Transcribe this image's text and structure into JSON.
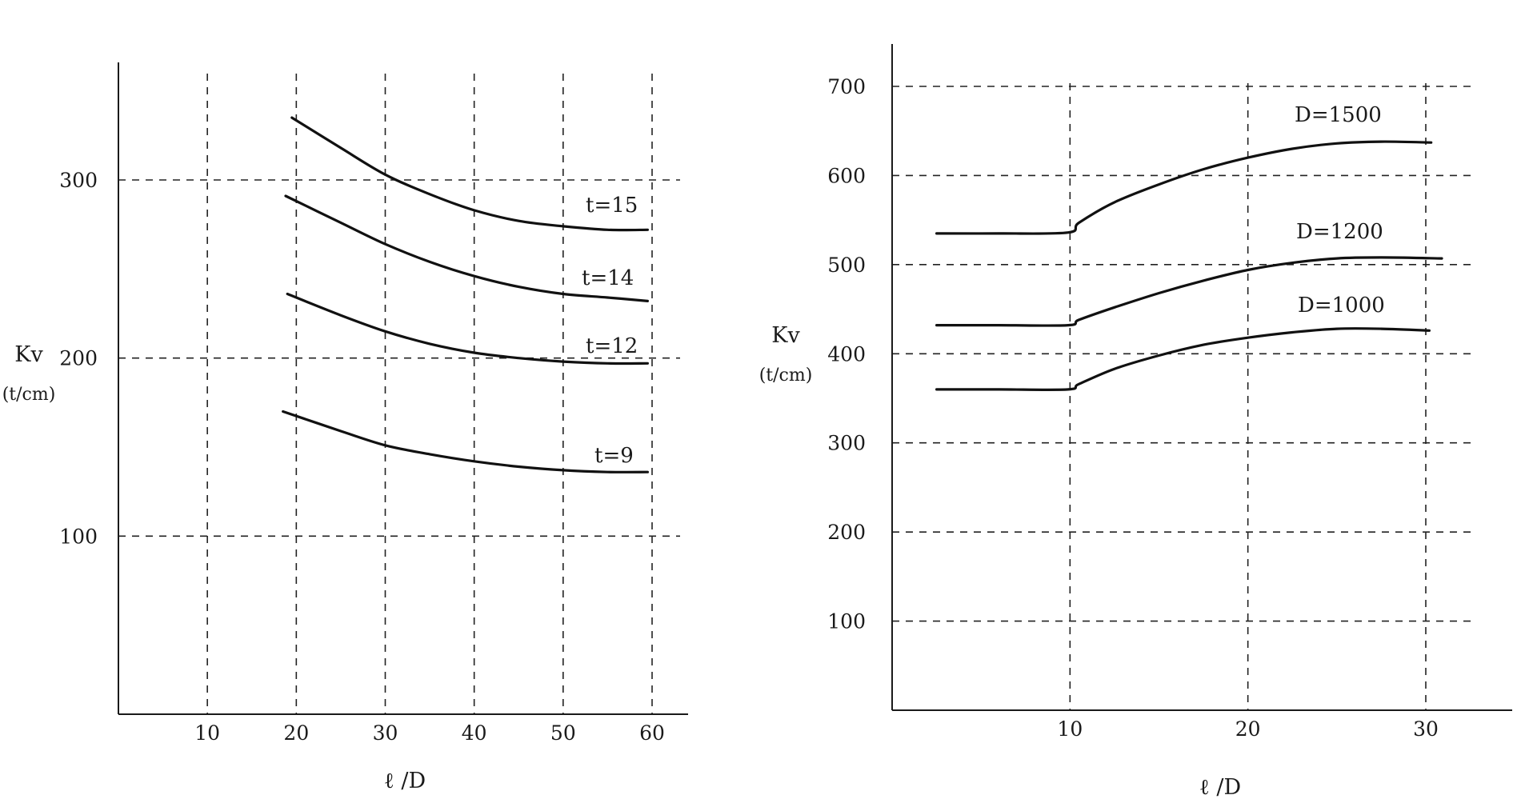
{
  "chart_data": [
    {
      "type": "line",
      "title": "",
      "xlabel": "ℓ /D",
      "ylabel": "Kv",
      "yunit": "(t/cm)",
      "xlim": [
        0,
        65
      ],
      "ylim": [
        0,
        365
      ],
      "xticks": [
        10,
        20,
        30,
        40,
        50,
        60
      ],
      "yticks": [
        100,
        200,
        300
      ],
      "grid": true,
      "series": [
        {
          "name": "t=15",
          "x": [
            19.5,
            25,
            30,
            35,
            40,
            45,
            50,
            55,
            59.5
          ],
          "y": [
            335,
            318,
            303,
            292,
            283,
            277,
            274,
            272,
            272
          ]
        },
        {
          "name": "t=14",
          "x": [
            18.8,
            25,
            30,
            35,
            40,
            45,
            50,
            55,
            59.5
          ],
          "y": [
            291,
            276,
            264,
            254,
            246,
            240,
            236,
            234,
            232
          ]
        },
        {
          "name": "t=12",
          "x": [
            19,
            25,
            30,
            35,
            40,
            45,
            50,
            55,
            59.5
          ],
          "y": [
            236,
            224,
            215,
            208,
            203,
            200,
            198,
            197,
            197
          ]
        },
        {
          "name": "t=9",
          "x": [
            18.5,
            25,
            30,
            35,
            40,
            45,
            50,
            55,
            59.5
          ],
          "y": [
            170,
            159,
            151,
            146,
            142,
            139,
            137,
            136,
            136
          ]
        }
      ]
    },
    {
      "type": "line",
      "title": "",
      "xlabel": "ℓ /D",
      "ylabel": "Kv",
      "yunit": "(t/cm)",
      "xlim": [
        0,
        35
      ],
      "ylim": [
        0,
        750
      ],
      "xticks": [
        10,
        20,
        30
      ],
      "yticks": [
        100,
        200,
        300,
        400,
        500,
        600,
        700
      ],
      "grid": true,
      "series": [
        {
          "name": "D=1500",
          "x": [
            2.5,
            6,
            9.9,
            10.5,
            12.5,
            15,
            17.5,
            20,
            22.5,
            25,
            27.5,
            30.3
          ],
          "y": [
            535,
            535,
            536,
            547,
            570,
            590,
            607,
            620,
            630,
            636,
            638,
            637
          ]
        },
        {
          "name": "D=1200",
          "x": [
            2.5,
            6,
            9.9,
            10.5,
            12.5,
            15,
            17.5,
            20,
            22.5,
            25,
            27.5,
            30.9
          ],
          "y": [
            432,
            432,
            432,
            438,
            452,
            468,
            482,
            494,
            502,
            507,
            508,
            507
          ]
        },
        {
          "name": "D=1000",
          "x": [
            2.5,
            6,
            9.9,
            10.5,
            12.5,
            15,
            17.5,
            20,
            22.5,
            25,
            27.5,
            30.2
          ],
          "y": [
            360,
            360,
            360,
            366,
            383,
            398,
            410,
            418,
            424,
            428,
            428,
            426
          ]
        }
      ]
    }
  ]
}
